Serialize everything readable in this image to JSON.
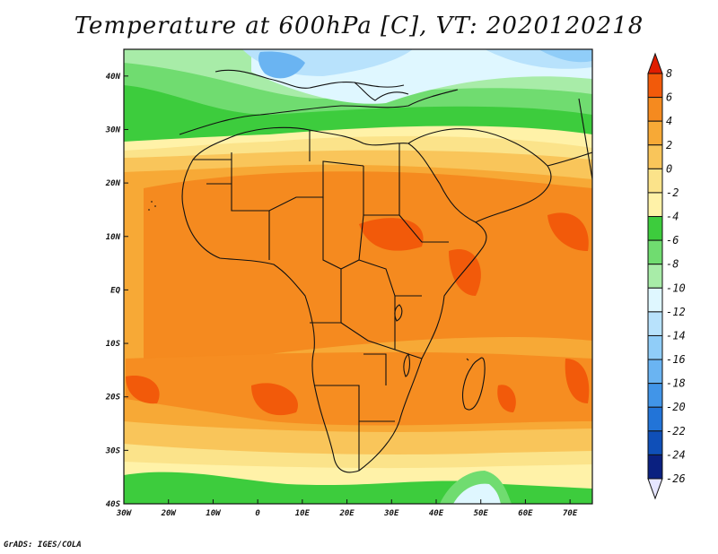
{
  "title": "Temperature at 600hPa [C], VT: 2020120218",
  "credit": "GrADS: IGES/COLA",
  "map": {
    "lon_range": [
      -30,
      75
    ],
    "lat_range": [
      -40,
      45
    ],
    "lon_ticks": [
      "30W",
      "20W",
      "10W",
      "0",
      "10E",
      "20E",
      "30E",
      "40E",
      "50E",
      "60E",
      "70E"
    ],
    "lat_ticks": [
      "40S",
      "30S",
      "20S",
      "10S",
      "EQ",
      "10N",
      "20N",
      "30N",
      "40N"
    ]
  },
  "colorbar": {
    "levels": [
      "8",
      "6",
      "4",
      "2",
      "0",
      "-2",
      "-4",
      "-6",
      "-8",
      "-10",
      "-12",
      "-14",
      "-16",
      "-18",
      "-20",
      "-22",
      "-24",
      "-26"
    ],
    "colors": [
      "#e01d00",
      "#f25a0a",
      "#f58a1f",
      "#f7a936",
      "#f9c55a",
      "#fbe38a",
      "#fff2a8",
      "#3dcc3d",
      "#70dc70",
      "#a8eca8",
      "#dff7ff",
      "#b8e2fc",
      "#90cdf8",
      "#6ab4f2",
      "#4195e8",
      "#2274d8",
      "#0f4fb8",
      "#0a2080",
      "#e6e6ff"
    ]
  }
}
